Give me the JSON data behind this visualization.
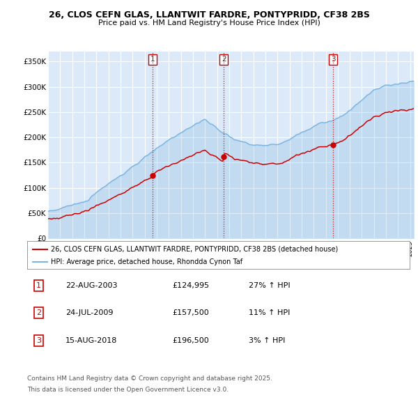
{
  "title": "26, CLOS CEFN GLAS, LLANTWIT FARDRE, PONTYPRIDD, CF38 2BS",
  "subtitle": "Price paid vs. HM Land Registry's House Price Index (HPI)",
  "ylim": [
    0,
    370000
  ],
  "yticks": [
    0,
    50000,
    100000,
    150000,
    200000,
    250000,
    300000,
    350000
  ],
  "ytick_labels": [
    "£0",
    "£50K",
    "£100K",
    "£150K",
    "£200K",
    "£250K",
    "£300K",
    "£350K"
  ],
  "background_color": "#ffffff",
  "plot_bg_color": "#dce9f8",
  "grid_color": "#ffffff",
  "legend_line1": "26, CLOS CEFN GLAS, LLANTWIT FARDRE, PONTYPRIDD, CF38 2BS (detached house)",
  "legend_line2": "HPI: Average price, detached house, Rhondda Cynon Taf",
  "red_color": "#cc0000",
  "blue_color": "#7ab4e0",
  "sale1_date": "22-AUG-2003",
  "sale1_price": "£124,995",
  "sale1_hpi": "27% ↑ HPI",
  "sale2_date": "24-JUL-2009",
  "sale2_price": "£157,500",
  "sale2_hpi": "11% ↑ HPI",
  "sale3_date": "15-AUG-2018",
  "sale3_price": "£196,500",
  "sale3_hpi": "3% ↑ HPI",
  "footer1": "Contains HM Land Registry data © Crown copyright and database right 2025.",
  "footer2": "This data is licensed under the Open Government Licence v3.0.",
  "vline_dates": [
    2003.64,
    2009.56,
    2018.62
  ],
  "vline_labels": [
    "1",
    "2",
    "3"
  ],
  "xmin": 1995.0,
  "xmax": 2025.3
}
